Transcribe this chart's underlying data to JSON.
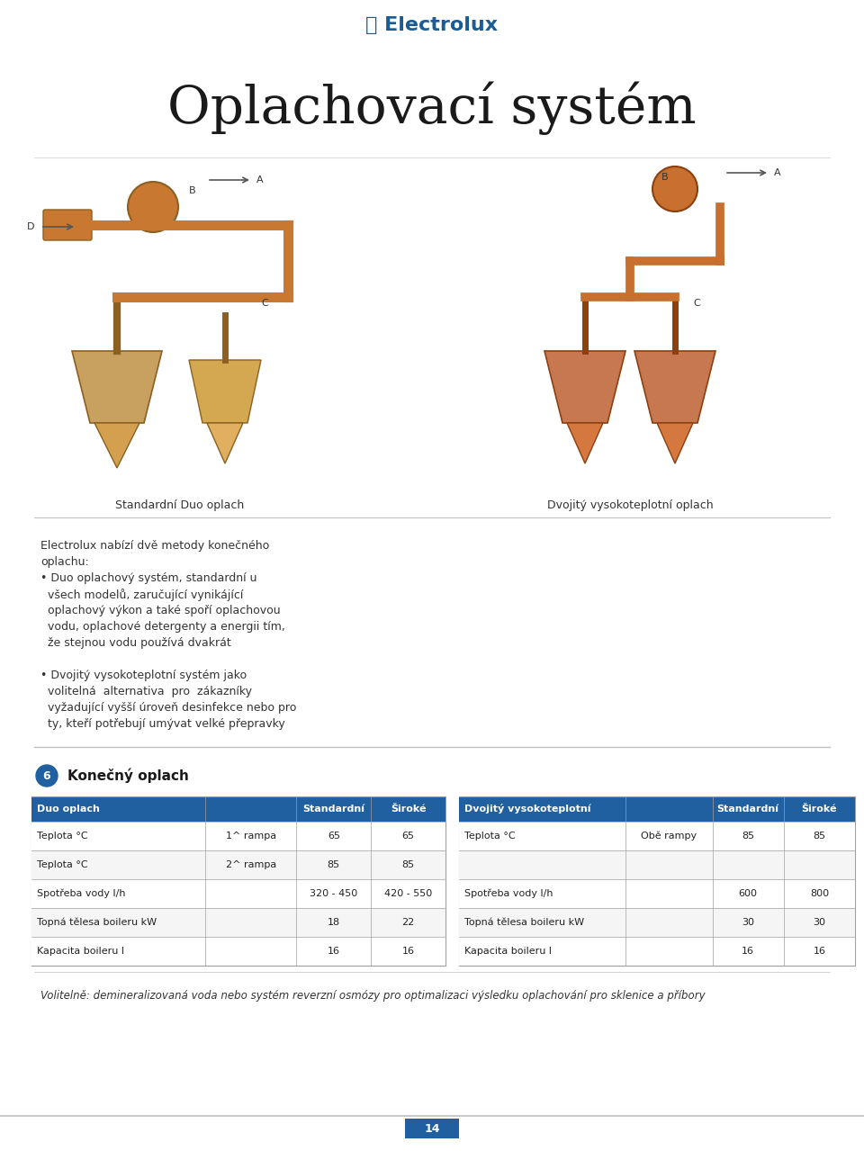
{
  "background_color": "#ffffff",
  "logo_text": "⦾ Electrolux",
  "logo_color": "#1a5c96",
  "title": "Oplachovací systém",
  "title_fontsize": 42,
  "title_color": "#1a1a1a",
  "image_caption_left": "Standardní Duo oplach",
  "image_caption_right": "Dvojitý vysokoteplotní oplach",
  "body_text": [
    "Electrolux nabízí dvě metody konečného",
    "oplachu:",
    "• Duo oplachový systém, standardní u",
    "  všech modelů, zaručující vynikájící",
    "  oplachový výkon a také spoří oplachovou",
    "  vodu, oplachové detergenty a energii tím,",
    "  že stejnou vodu používá dvakrát",
    "",
    "• Dvojitý vysokoteplotní systém jako",
    "  volitelná  alternativa  pro  zákazníky",
    "  vyžadující vyšší úroveň desinfekce nebo pro",
    "  ty, kteří potřebují umývat velké přepravky"
  ],
  "section_number": "6",
  "section_title": "Konečný oplach",
  "table_header_color": "#2060a0",
  "table_header_text_color": "#ffffff",
  "table_row_color_alt": "#f0f0f0",
  "table_border_color": "#a0a0a0",
  "table1": {
    "header": [
      "Duo oplach",
      "",
      "Standardní",
      "Široké"
    ],
    "rows": [
      [
        "Teplota °C",
        "1^ rampa",
        "65",
        "65"
      ],
      [
        "Teplota °C",
        "2^ rampa",
        "85",
        "85"
      ],
      [
        "Spotřeba vody l/h",
        "",
        "320 - 450",
        "420 - 550"
      ],
      [
        "Topná tělesa boileru kW",
        "",
        "18",
        "22"
      ],
      [
        "Kapacita boileru l",
        "",
        "16",
        "16"
      ]
    ]
  },
  "table2": {
    "header": [
      "Dvojitý vysokoteplotní",
      "",
      "Standardní",
      "Široké"
    ],
    "rows": [
      [
        "Teplota °C",
        "Obě rampy",
        "85",
        "85"
      ],
      [
        "",
        "",
        "",
        ""
      ],
      [
        "Spotřeba vody l/h",
        "",
        "600",
        "800"
      ],
      [
        "Topná tělesa boileru kW",
        "",
        "30",
        "30"
      ],
      [
        "Kapacita boileru l",
        "",
        "16",
        "16"
      ]
    ]
  },
  "footer_text": "Volitelně: demineralizovaná voda nebo systém reverzní osmózy pro optimalizaci výsledku oplachování pro sklenice a příbory",
  "page_number": "14",
  "page_number_bg": "#2060a0",
  "separator_color": "#c0c0c0"
}
